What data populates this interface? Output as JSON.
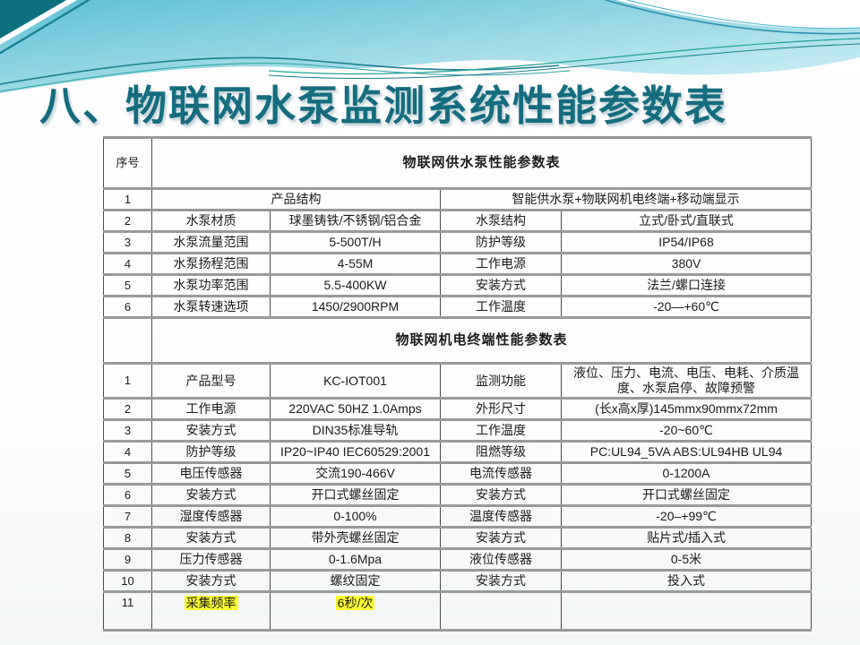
{
  "title": "八、物联网水泵监测系统性能参数表",
  "colors": {
    "title": "#156c80",
    "highlight": "#ffff2e",
    "band_top": "#5ec0d6",
    "band_mid": "#8fd3e3",
    "band_light": "#c8ecf4",
    "table_border_h": "#999999",
    "table_border_v": "#4a4a4a"
  },
  "table": {
    "rows": [
      {
        "num": "序号",
        "section": "物联网供水泵性能参数表"
      },
      {
        "cells": [
          "1",
          {
            "t": "产品结构",
            "span": 2
          },
          {
            "t": "智能供水泵+物联网机电终端+移动端显示",
            "span": 2
          }
        ]
      },
      {
        "cells": [
          "2",
          "水泵材质",
          "球墨铸铁/不锈钢/铝合金",
          "水泵结构",
          "立式/卧式/直联式"
        ]
      },
      {
        "cells": [
          "3",
          "水泵流量范围",
          "5-500T/H",
          "防护等级",
          "IP54/IP68"
        ]
      },
      {
        "cells": [
          "4",
          "水泵扬程范围",
          "4-55M",
          "工作电源",
          "380V"
        ]
      },
      {
        "cells": [
          "5",
          "水泵功率范围",
          "5.5-400KW",
          "安装方式",
          "法兰/螺口连接"
        ]
      },
      {
        "cells": [
          "6",
          "水泵转速选项",
          "1450/2900RPM",
          "工作温度",
          "-20—+60℃"
        ]
      },
      {
        "num": "",
        "section": "物联网机电终端性能参数表"
      },
      {
        "cells": [
          "1",
          "产品型号",
          "KC-IOT001",
          "监测功能",
          "液位、压力、电流、电压、电耗、介质温度、水泵启停、故障预警"
        ]
      },
      {
        "cells": [
          "2",
          "工作电源",
          "220VAC 50HZ 1.0Amps",
          "外形尺寸",
          "(长x高x厚)145mmx90mmx72mm"
        ]
      },
      {
        "cells": [
          "3",
          "安装方式",
          "DIN35标准导轨",
          "工作温度",
          "-20~60℃"
        ]
      },
      {
        "cells": [
          "4",
          "防护等级",
          "IP20~IP40 IEC60529:2001",
          "阻燃等级",
          "PC:UL94_5VA ABS:UL94HB UL94"
        ]
      },
      {
        "cells": [
          "5",
          "电压传感器",
          "交流190-466V",
          "电流传感器",
          "0-1200A"
        ]
      },
      {
        "cells": [
          "6",
          "安装方式",
          "开口式螺丝固定",
          "安装方式",
          "开口式螺丝固定"
        ]
      },
      {
        "cells": [
          "7",
          "湿度传感器",
          "0-100%",
          "温度传感器",
          "-20–+99℃"
        ]
      },
      {
        "cells": [
          "8",
          "安装方式",
          "带外壳螺丝固定",
          "安装方式",
          "贴片式/插入式"
        ]
      },
      {
        "cells": [
          "9",
          "压力传感器",
          "0-1.6Mpa",
          "液位传感器",
          "0-5米"
        ]
      },
      {
        "cells": [
          "10",
          "安装方式",
          "螺纹固定",
          "安装方式",
          "投入式"
        ]
      },
      {
        "cells": [
          "11",
          {
            "t": "采集频率",
            "hl": true
          },
          {
            "t": "6秒/次",
            "hl": true
          },
          "",
          ""
        ]
      }
    ]
  }
}
